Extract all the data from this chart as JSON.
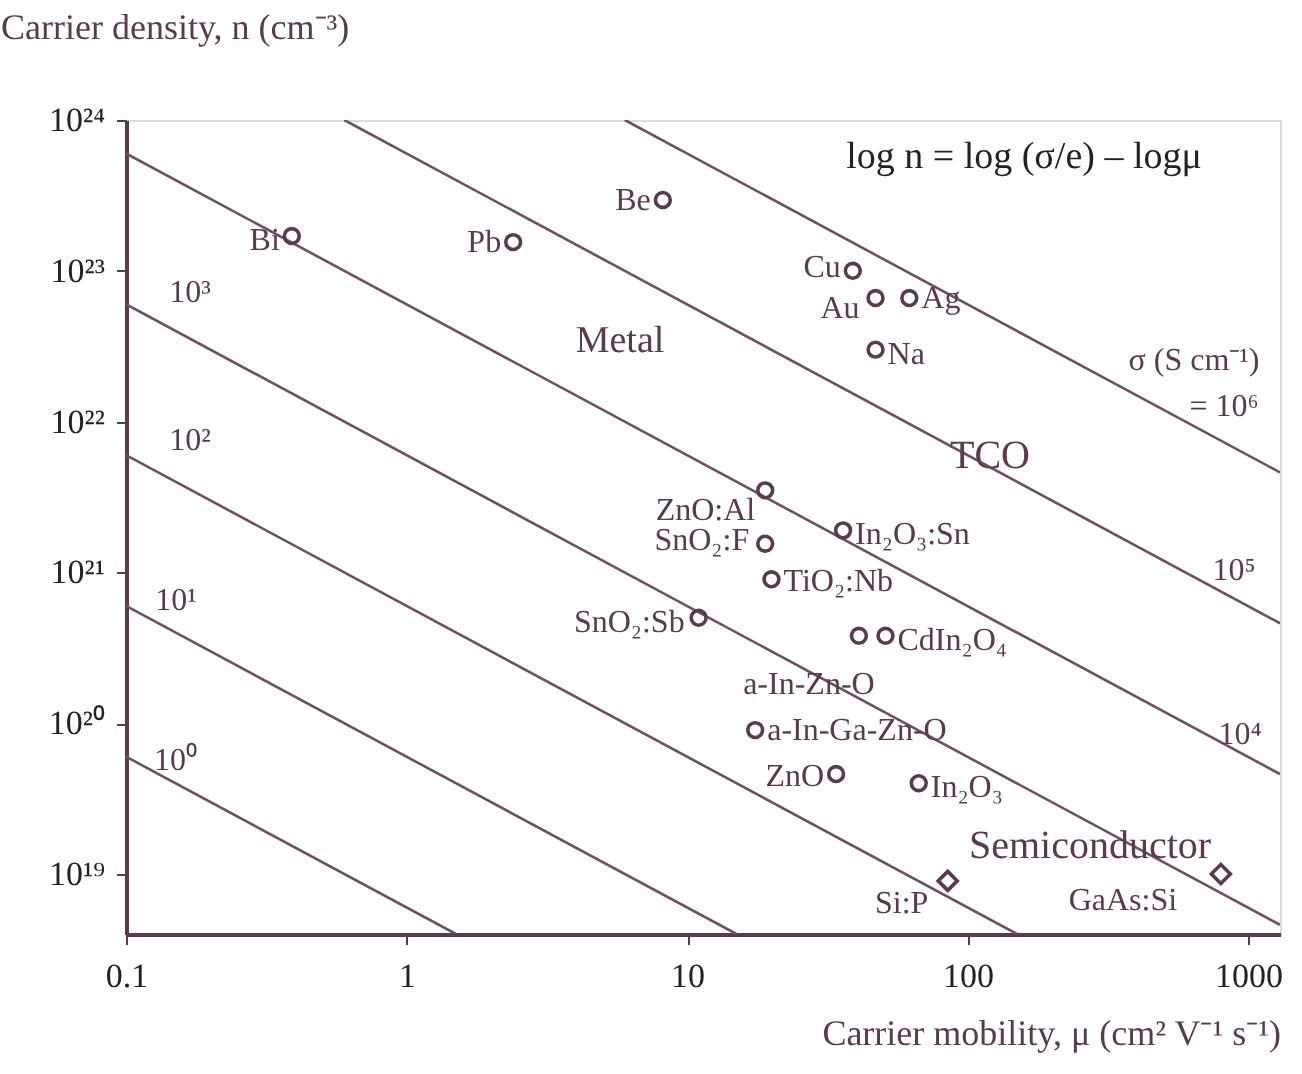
{
  "chart_data": {
    "type": "scatter",
    "xlabel": "Carrier mobility, μ (cm² V⁻¹ s⁻¹)",
    "ylabel": "Carrier density, n (cm⁻³)",
    "log": "xy",
    "grid": false,
    "xlim": [
      0.1,
      1300
    ],
    "xticks": [
      0.1,
      1,
      10,
      100,
      1000
    ],
    "ylim": [
      4e+18,
      1e+24
    ],
    "yticks": [
      {
        "value": 1e+19,
        "label": "10¹⁹"
      },
      {
        "value": 1e+20,
        "label": "10²⁰"
      },
      {
        "value": 1e+21,
        "label": "10²¹"
      },
      {
        "value": 1e+22,
        "label": "10²²"
      },
      {
        "value": 1e+23,
        "label": "10²³"
      },
      {
        "value": 1e+24,
        "label": "10²⁴"
      }
    ],
    "series": [
      {
        "type": "line",
        "color": "#6e4f63",
        "x": [
          0.1,
          1.5
        ],
        "values": [
          6e+19,
          4e+18
        ]
      },
      {
        "type": "line",
        "color": "#6e4f63",
        "x": [
          0.1,
          15
        ],
        "values": [
          6e+20,
          4e+18
        ]
      },
      {
        "type": "line",
        "color": "#6e4f63",
        "x": [
          0.1,
          150
        ],
        "values": [
          6e+21,
          4e+18
        ]
      },
      {
        "type": "line",
        "color": "#6e4f63",
        "x": [
          0.1,
          1300
        ],
        "values": [
          6e+22,
          4.6e+18
        ]
      },
      {
        "type": "line",
        "color": "#6e4f63",
        "x": [
          0.1,
          1300
        ],
        "values": [
          6e+23,
          4.6e+19
        ]
      },
      {
        "type": "line",
        "color": "#6e4f63",
        "x": [
          0.6,
          1300
        ],
        "values": [
          1e+24,
          4.6e+20
        ]
      },
      {
        "type": "line",
        "color": "#6e4f63",
        "x": [
          6,
          1300
        ],
        "values": [
          1e+24,
          4.6e+21
        ]
      },
      {
        "marker": "circle",
        "color": "#5a3a4e",
        "x": [
          0.39,
          2.4,
          8.2,
          39,
          47,
          62,
          47,
          19,
          36,
          19,
          20,
          11,
          41,
          51,
          17.5,
          34,
          67
        ],
        "values": [
          1.7e+23,
          1.55e+23,
          2.95e+23,
          1e+23,
          6.6e+22,
          6.6e+22,
          3e+22,
          3.5e+21,
          1.9e+21,
          1.55e+21,
          9e+20,
          5e+20,
          3.8e+20,
          3.8e+20,
          9e+19,
          4.6e+19,
          4e+19
        ]
      },
      {
        "marker": "diamond",
        "color": "#5a3a4e",
        "x": [
          85,
          800
        ],
        "values": [
          9e+18,
          1e+19
        ]
      }
    ],
    "annotations": [
      "log n = log (σ/e) – logμ",
      "Metal",
      "TCO",
      "Semiconductor",
      "10⁰",
      "10¹",
      "10²",
      "10³",
      "10⁴",
      "10⁵",
      "σ (S cm⁻¹)",
      "= 10⁶",
      {
        "text": "Bi",
        "x": 0.39,
        "y": 1.7e+23
      },
      {
        "text": "Pb",
        "x": 2.4,
        "y": 1.55e+23
      },
      {
        "text": "Be",
        "x": 8.2,
        "y": 2.95e+23
      },
      {
        "text": "Cu",
        "x": 39,
        "y": 1e+23
      },
      {
        "text": "Au",
        "x": 47,
        "y": 6.6e+22
      },
      {
        "text": "Ag",
        "x": 62,
        "y": 6.6e+22
      },
      {
        "text": "Na",
        "x": 47,
        "y": 3e+22
      },
      {
        "text": "ZnO:Al",
        "x": 19,
        "y": 3.5e+21
      },
      {
        "text": "In₂O₃:Sn",
        "x": 36,
        "y": 1.9e+21
      },
      {
        "text": "SnO₂:F",
        "x": 19,
        "y": 1.55e+21
      },
      {
        "text": "TiO₂:Nb",
        "x": 20,
        "y": 9e+20
      },
      {
        "text": "SnO₂:Sb",
        "x": 11,
        "y": 5e+20
      },
      {
        "text": "CdIn₂O₄",
        "x": 51,
        "y": 3.8e+20
      },
      {
        "text": "a-In-Zn-O",
        "x": 41,
        "y": 3.8e+20
      },
      {
        "text": "a-In-Ga-Zn-O",
        "x": 17.5,
        "y": 9e+19
      },
      {
        "text": "ZnO",
        "x": 34,
        "y": 4.6e+19
      },
      {
        "text": "In₂O₃",
        "x": 67,
        "y": 4e+19
      },
      {
        "text": "Si:P",
        "x": 85,
        "y": 9e+18
      },
      {
        "text": "GaAs:Si",
        "x": 800,
        "y": 1e+19
      }
    ]
  }
}
